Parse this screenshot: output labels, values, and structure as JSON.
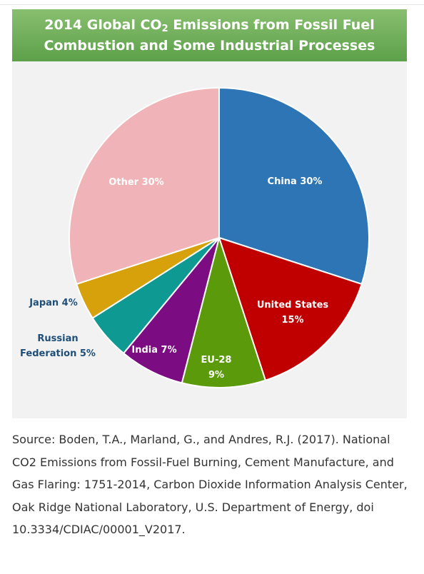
{
  "chart_data": {
    "type": "pie",
    "title": {
      "line1_prefix": "2014 Global CO",
      "line1_subscript": "2",
      "line1_suffix": " Emissions from Fossil Fuel",
      "line2": "Combustion and Some Industrial Processes"
    },
    "slices": [
      {
        "label": "China",
        "value": 30,
        "pct_text": "30%",
        "color": "#2e75b6"
      },
      {
        "label": "United States",
        "value": 15,
        "pct_text": "15%",
        "color": "#c00000"
      },
      {
        "label": "EU-28",
        "value": 9,
        "pct_text": "9%",
        "color": "#5b9a0a"
      },
      {
        "label": "India",
        "value": 7,
        "pct_text": "7%",
        "color": "#7b0c82"
      },
      {
        "label": "Russian Federation",
        "value": 5,
        "pct_text": "5%",
        "color": "#0e9a93"
      },
      {
        "label": "Japan",
        "value": 4,
        "pct_text": "4%",
        "color": "#d6a10b"
      },
      {
        "label": "Other",
        "value": 30,
        "pct_text": "30%",
        "color": "#f0b3b7"
      }
    ]
  },
  "colors": {
    "banner_green": "#6aab55",
    "outside_label": "#1f4e79",
    "inside_label": "#ffffff"
  },
  "source": {
    "text": "Source: Boden, T.A., Marland, G., and Andres, R.J. (2017). National CO2 Emissions from Fossil-Fuel Burning, Cement Manufacture, and Gas Flaring: 1751-2014, Carbon Dioxide Information Analysis Center, Oak Ridge National Laboratory, U.S. Department of Energy, doi 10.3334/CDIAC/00001_V2017."
  }
}
